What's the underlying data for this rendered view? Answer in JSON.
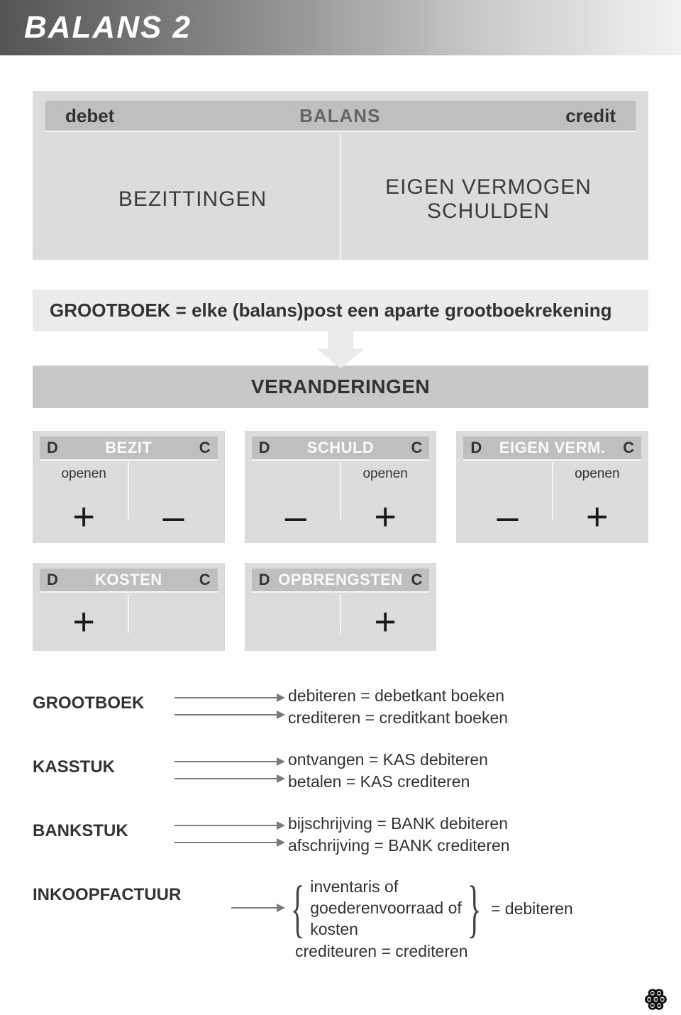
{
  "title": "BALANS 2",
  "colors": {
    "title_gradient_from": "#555555",
    "title_gradient_to": "#f2f2f2",
    "box_bg": "#dcdcdc",
    "box_header_bg": "#bfbfbf",
    "strip_bg": "#ebebeb",
    "medium_bg": "#c8c8c8",
    "text": "#3a3a3a",
    "header_mid_text": "#fafafa",
    "arrow_line": "#7a7a7a"
  },
  "balans": {
    "left_header": "debet",
    "center_header": "BALANS",
    "right_header": "credit",
    "left_body": "BEZITTINGEN",
    "right_body_line1": "EIGEN VERMOGEN",
    "right_body_line2": "SCHULDEN"
  },
  "grootboek_strip": "GROOTBOEK = elke (balans)post een aparte grootboekrekening",
  "veranderingen": "VERANDERINGEN",
  "t_accounts_row1": [
    {
      "d": "D",
      "title": "BEZIT",
      "c": "C",
      "openen_side": "left",
      "left_sign": "+",
      "right_sign": "–"
    },
    {
      "d": "D",
      "title": "SCHULD",
      "c": "C",
      "openen_side": "right",
      "left_sign": "–",
      "right_sign": "+"
    },
    {
      "d": "D",
      "title": "EIGEN VERM.",
      "c": "C",
      "openen_side": "right",
      "left_sign": "–",
      "right_sign": "+"
    }
  ],
  "t_accounts_row2": [
    {
      "d": "D",
      "title": "KOSTEN",
      "c": "C",
      "left_sign": "+",
      "right_sign": ""
    },
    {
      "d": "D",
      "title": "OPBRENGSTEN",
      "c": "C",
      "left_sign": "",
      "right_sign": "+"
    }
  ],
  "openen_label": "openen",
  "definitions": [
    {
      "label": "GROOTBOEK",
      "line1": "debiteren = debetkant boeken",
      "line2": "crediteren = creditkant boeken"
    },
    {
      "label": "KASSTUK",
      "line1": "ontvangen = KAS debiteren",
      "line2": "betalen = KAS crediteren"
    },
    {
      "label": "BANKSTUK",
      "line1": "bijschrijving = BANK debiteren",
      "line2": "afschrijving = BANK crediteren"
    }
  ],
  "inkoop": {
    "label": "INKOOPFACTUUR",
    "brace_line1": "inventaris of",
    "brace_line2": "goederenvoorraad of",
    "brace_line3": "kosten",
    "brace_result": "= debiteren",
    "line4": "crediteuren = crediteren"
  }
}
